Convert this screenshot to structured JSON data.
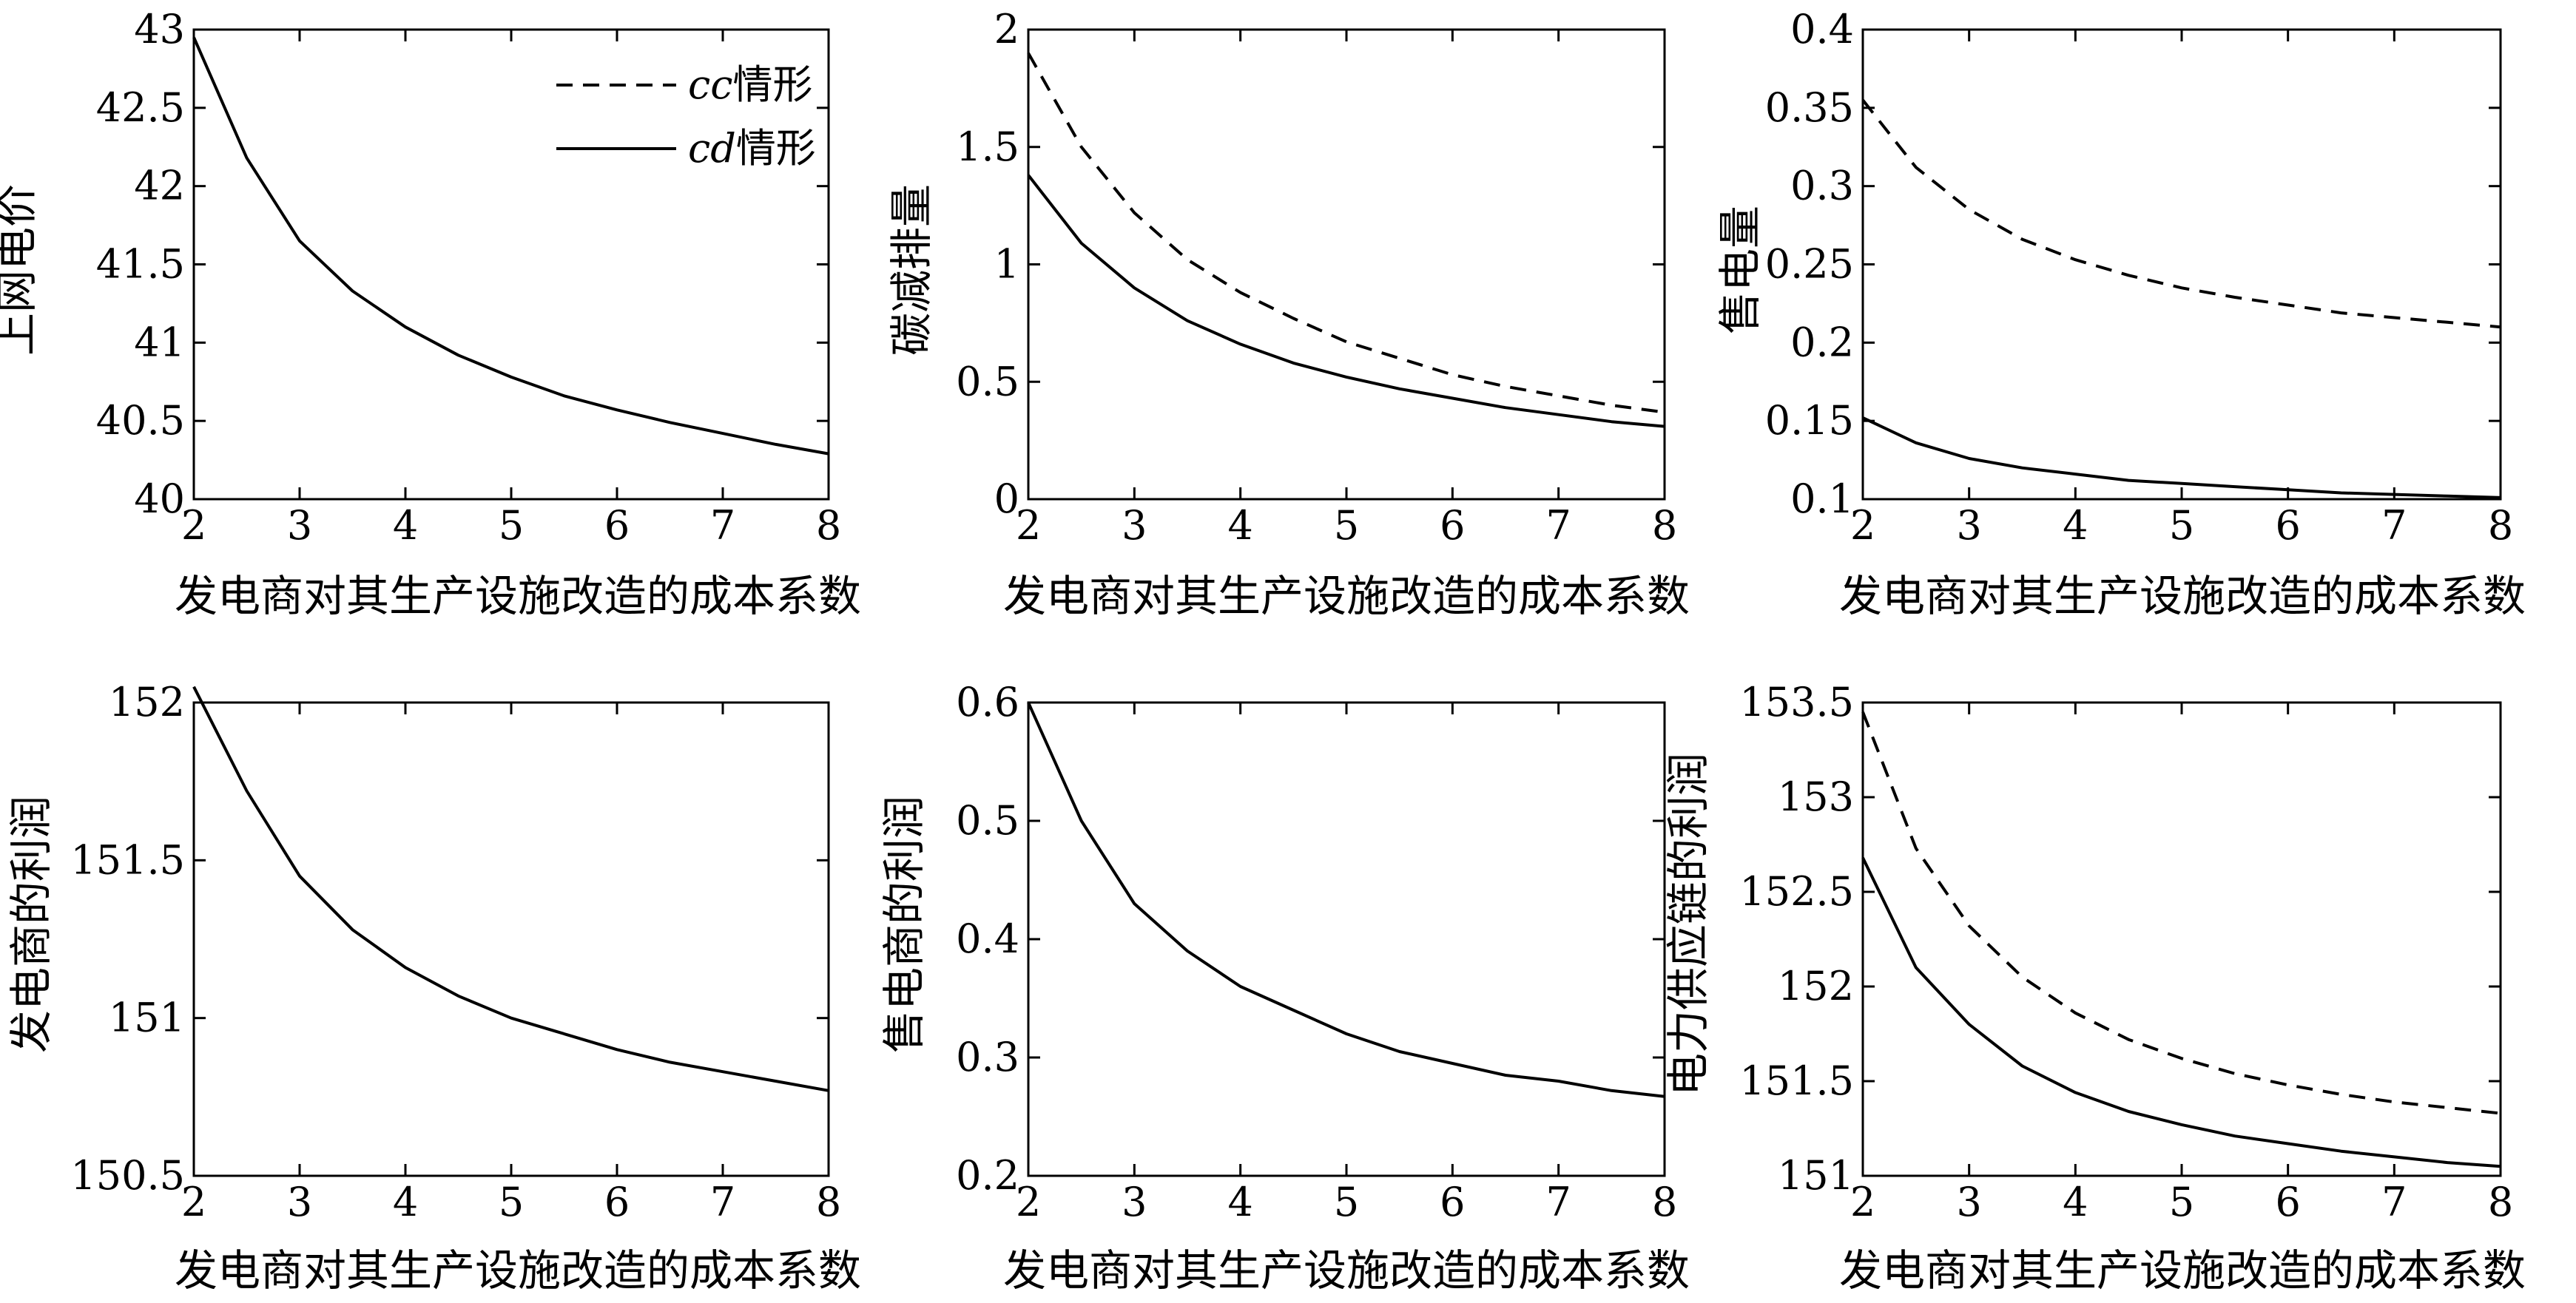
{
  "figure": {
    "legend": [
      {
        "label_italic": "cc",
        "label_suffix": "情形",
        "style": "dashed"
      },
      {
        "label_italic": "cd",
        "label_suffix": "情形",
        "style": "solid"
      }
    ]
  },
  "chart_data": [
    {
      "type": "line",
      "xlabel": "发电商对其生产设施改造的成本系数",
      "ylabel": "上网电价",
      "xlim": [
        2,
        8
      ],
      "ylim": [
        40,
        43
      ],
      "xticks": [
        "2",
        "3",
        "4",
        "5",
        "6",
        "7",
        "8"
      ],
      "yticks": [
        "40",
        "40.5",
        "41",
        "41.5",
        "42",
        "42.5",
        "43"
      ],
      "legend_position": "top-right",
      "series": [
        {
          "name": "cd情形",
          "style": "solid",
          "x": [
            2,
            2.5,
            3,
            3.5,
            4,
            4.5,
            5,
            5.5,
            6,
            6.5,
            7,
            7.5,
            8
          ],
          "y": [
            42.95,
            42.18,
            41.65,
            41.33,
            41.1,
            40.92,
            40.78,
            40.66,
            40.57,
            40.49,
            40.42,
            40.35,
            40.29
          ]
        }
      ]
    },
    {
      "type": "line",
      "xlabel": "发电商对其生产设施改造的成本系数",
      "ylabel": "碳减排量",
      "xlim": [
        2,
        8
      ],
      "ylim": [
        0,
        2
      ],
      "xticks": [
        "2",
        "3",
        "4",
        "5",
        "6",
        "7",
        "8"
      ],
      "yticks": [
        "0",
        "0.5",
        "1",
        "1.5",
        "2"
      ],
      "series": [
        {
          "name": "cc情形",
          "style": "dashed",
          "x": [
            2,
            2.5,
            3,
            3.5,
            4,
            4.5,
            5,
            5.5,
            6,
            6.5,
            7,
            7.5,
            8
          ],
          "y": [
            1.9,
            1.5,
            1.22,
            1.02,
            0.88,
            0.77,
            0.67,
            0.6,
            0.53,
            0.48,
            0.44,
            0.4,
            0.37
          ]
        },
        {
          "name": "cd情形",
          "style": "solid",
          "x": [
            2,
            2.5,
            3,
            3.5,
            4,
            4.5,
            5,
            5.5,
            6,
            6.5,
            7,
            7.5,
            8
          ],
          "y": [
            1.38,
            1.09,
            0.9,
            0.76,
            0.66,
            0.58,
            0.52,
            0.47,
            0.43,
            0.39,
            0.36,
            0.33,
            0.31
          ]
        }
      ]
    },
    {
      "type": "line",
      "xlabel": "发电商对其生产设施改造的成本系数",
      "ylabel": "售电量",
      "xlim": [
        2,
        8
      ],
      "ylim": [
        0.1,
        0.4
      ],
      "xticks": [
        "2",
        "3",
        "4",
        "5",
        "6",
        "7",
        "8"
      ],
      "yticks": [
        "0.1",
        "0.15",
        "0.2",
        "0.25",
        "0.3",
        "0.35",
        "0.4"
      ],
      "series": [
        {
          "name": "cc情形",
          "style": "dashed",
          "x": [
            2,
            2.5,
            3,
            3.5,
            4,
            4.5,
            5,
            5.5,
            6,
            6.5,
            7,
            7.5,
            8
          ],
          "y": [
            0.355,
            0.312,
            0.285,
            0.266,
            0.253,
            0.243,
            0.235,
            0.229,
            0.224,
            0.219,
            0.216,
            0.213,
            0.21
          ]
        },
        {
          "name": "cd情形",
          "style": "solid",
          "x": [
            2,
            2.5,
            3,
            3.5,
            4,
            4.5,
            5,
            5.5,
            6,
            6.5,
            7,
            7.5,
            8
          ],
          "y": [
            0.152,
            0.136,
            0.126,
            0.12,
            0.116,
            0.112,
            0.11,
            0.108,
            0.106,
            0.104,
            0.103,
            0.102,
            0.101
          ]
        }
      ]
    },
    {
      "type": "line",
      "xlabel": "发电商对其生产设施改造的成本系数",
      "ylabel": "发电商的利润",
      "xlim": [
        2,
        8
      ],
      "ylim": [
        150.5,
        152
      ],
      "xticks": [
        "2",
        "3",
        "4",
        "5",
        "6",
        "7",
        "8"
      ],
      "yticks": [
        "150.5",
        "151",
        "151.5",
        "152"
      ],
      "series": [
        {
          "name": "cd情形",
          "style": "solid",
          "x": [
            2,
            2.5,
            3,
            3.5,
            4,
            4.5,
            5,
            5.5,
            6,
            6.5,
            7,
            7.5,
            8
          ],
          "y": [
            152.05,
            151.72,
            151.45,
            151.28,
            151.16,
            151.07,
            151.0,
            150.95,
            150.9,
            150.86,
            150.83,
            150.8,
            150.77
          ]
        }
      ]
    },
    {
      "type": "line",
      "xlabel": "发电商对其生产设施改造的成本系数",
      "ylabel": "售电商的利润",
      "xlim": [
        2,
        8
      ],
      "ylim": [
        0.2,
        0.6
      ],
      "xticks": [
        "2",
        "3",
        "4",
        "5",
        "6",
        "7",
        "8"
      ],
      "yticks": [
        "0.2",
        "0.3",
        "0.4",
        "0.5",
        "0.6"
      ],
      "series": [
        {
          "name": "cd情形",
          "style": "solid",
          "x": [
            2,
            2.5,
            3,
            3.5,
            4,
            4.5,
            5,
            5.5,
            6,
            6.5,
            7,
            7.5,
            8
          ],
          "y": [
            0.6,
            0.5,
            0.43,
            0.39,
            0.36,
            0.34,
            0.32,
            0.305,
            0.295,
            0.285,
            0.28,
            0.272,
            0.267
          ]
        }
      ]
    },
    {
      "type": "line",
      "xlabel": "发电商对其生产设施改造的成本系数",
      "ylabel": "电力供应链的利润",
      "xlim": [
        2,
        8
      ],
      "ylim": [
        151,
        153.5
      ],
      "xticks": [
        "2",
        "3",
        "4",
        "5",
        "6",
        "7",
        "8"
      ],
      "yticks": [
        "151",
        "151.5",
        "152",
        "152.5",
        "153",
        "153.5"
      ],
      "series": [
        {
          "name": "cc情形",
          "style": "dashed",
          "x": [
            2,
            2.5,
            3,
            3.5,
            4,
            4.5,
            5,
            5.5,
            6,
            6.5,
            7,
            7.5,
            8
          ],
          "y": [
            153.45,
            152.73,
            152.32,
            152.05,
            151.86,
            151.72,
            151.62,
            151.54,
            151.48,
            151.43,
            151.39,
            151.36,
            151.33
          ]
        },
        {
          "name": "cd情形",
          "style": "solid",
          "x": [
            2,
            2.5,
            3,
            3.5,
            4,
            4.5,
            5,
            5.5,
            6,
            6.5,
            7,
            7.5,
            8
          ],
          "y": [
            152.68,
            152.1,
            151.8,
            151.58,
            151.44,
            151.34,
            151.27,
            151.21,
            151.17,
            151.13,
            151.1,
            151.07,
            151.05
          ]
        }
      ]
    }
  ]
}
